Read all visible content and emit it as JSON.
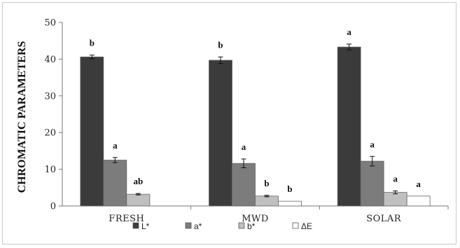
{
  "chart_data": {
    "type": "bar",
    "title": "",
    "xlabel": "",
    "ylabel": "CHROMATIC PARAMETERS",
    "ylim": [
      0,
      50
    ],
    "yticks": [
      "0",
      "10",
      "20",
      "30",
      "40",
      "50"
    ],
    "categories": [
      "FRESH",
      "MWD",
      "SOLAR"
    ],
    "grid": false,
    "legend_position": "bottom",
    "series": [
      {
        "name": "L*",
        "color": "#3b3b3b",
        "values": [
          40.6,
          39.7,
          43.3
        ],
        "errors": [
          0.5,
          0.9,
          0.8
        ],
        "labels": [
          "b",
          "b",
          "a"
        ]
      },
      {
        "name": "a*",
        "color": "#7c7c7c",
        "values": [
          12.5,
          11.6,
          12.2
        ],
        "errors": [
          0.7,
          1.2,
          1.3
        ],
        "labels": [
          "a",
          "a",
          "a"
        ]
      },
      {
        "name": "b*",
        "color": "#c0c0c0",
        "values": [
          3.2,
          2.7,
          3.7
        ],
        "errors": [
          0.2,
          0.2,
          0.4
        ],
        "labels": [
          "ab",
          "b",
          "a"
        ]
      },
      {
        "name": "ΔE",
        "color": "#ffffff",
        "values": [
          null,
          1.3,
          2.7
        ],
        "errors": [
          null,
          null,
          null
        ],
        "labels": [
          "",
          "b",
          "a"
        ]
      }
    ]
  }
}
